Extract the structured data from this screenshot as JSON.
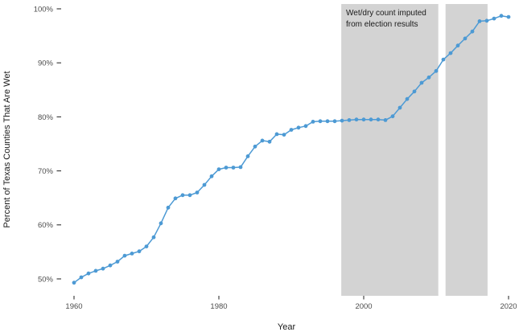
{
  "chart_data": {
    "type": "line",
    "title": "",
    "xlabel": "Year",
    "ylabel": "Percent of Texas Counties That Are Wet",
    "x": [
      1960,
      1961,
      1962,
      1963,
      1964,
      1965,
      1966,
      1967,
      1968,
      1969,
      1970,
      1971,
      1972,
      1973,
      1974,
      1975,
      1976,
      1977,
      1978,
      1979,
      1980,
      1981,
      1982,
      1983,
      1984,
      1985,
      1986,
      1987,
      1988,
      1989,
      1990,
      1991,
      1992,
      1993,
      1994,
      1995,
      1996,
      1997,
      1998,
      1999,
      2000,
      2001,
      2002,
      2003,
      2004,
      2005,
      2006,
      2007,
      2008,
      2009,
      2010,
      2011,
      2012,
      2013,
      2014,
      2015,
      2016,
      2017,
      2018,
      2019,
      2020
    ],
    "series": [
      {
        "name": "percent-wet-counties",
        "values": [
          49.3,
          50.3,
          51.0,
          51.5,
          51.9,
          52.5,
          53.2,
          54.3,
          54.7,
          55.1,
          56.0,
          57.7,
          60.3,
          63.2,
          64.9,
          65.5,
          65.5,
          66.0,
          67.4,
          69.0,
          70.3,
          70.6,
          70.6,
          70.7,
          72.7,
          74.5,
          75.6,
          75.4,
          76.8,
          76.7,
          77.6,
          78.0,
          78.3,
          79.1,
          79.2,
          79.2,
          79.2,
          79.3,
          79.4,
          79.5,
          79.5,
          79.5,
          79.5,
          79.4,
          80.1,
          81.7,
          83.3,
          84.7,
          86.3,
          87.3,
          88.5,
          90.6,
          91.8,
          93.2,
          94.5,
          95.8,
          97.7,
          97.8,
          98.2,
          98.7,
          98.5
        ]
      }
    ],
    "x_ticks": {
      "values": [
        1960,
        1980,
        2000,
        2020
      ],
      "labels": [
        "1960",
        "1980",
        "2000",
        "2020"
      ]
    },
    "y_ticks": {
      "values": [
        50,
        60,
        70,
        80,
        90,
        100
      ],
      "labels": [
        "50%",
        "60%",
        "70%",
        "80%",
        "90%",
        "100%"
      ]
    },
    "xlim": [
      1958.89,
      2021.22
    ],
    "ylim": [
      46.87,
      100.89
    ],
    "grid": false,
    "legend": false,
    "shaded_regions": [
      {
        "from": 1996.9,
        "to": 2010.3
      },
      {
        "from": 2011.3,
        "to": 2017.1
      }
    ],
    "annotation": {
      "lines": [
        "Wet/dry count imputed",
        "from election results"
      ],
      "x_year": 1997.6,
      "y_percent": 98.8
    },
    "colors": {
      "line": "#4d9ad4",
      "point": "#4d9ad4",
      "band": "#d3d3d3",
      "tick_text": "#4d4d4d",
      "axis_title_text": "#1a1a1a",
      "annotation_text": "#1a1a1a",
      "background": "#ffffff"
    }
  }
}
